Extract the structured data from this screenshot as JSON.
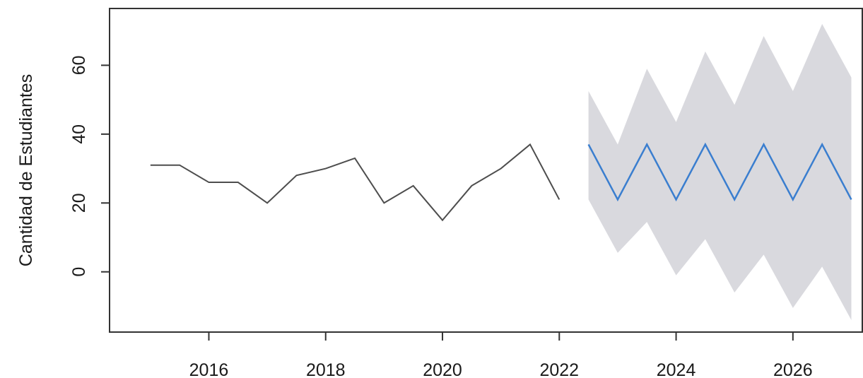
{
  "chart_data": {
    "type": "line",
    "title": "",
    "xlabel": "",
    "ylabel": "Cantidad de Estudiantes",
    "xlim": [
      2014.3,
      2027.2
    ],
    "ylim": [
      -17.5,
      76.5
    ],
    "x_ticks": [
      2016,
      2018,
      2020,
      2022,
      2024,
      2026
    ],
    "y_ticks": [
      0,
      20,
      40,
      60
    ],
    "grid": false,
    "legend": "none",
    "series": [
      {
        "role": "observed",
        "color": "#4d4d4d",
        "x": [
          2015.0,
          2015.5,
          2016.0,
          2016.5,
          2017.0,
          2017.5,
          2018.0,
          2018.5,
          2019.0,
          2019.5,
          2020.0,
          2020.5,
          2021.0,
          2021.5,
          2022.0
        ],
        "y": [
          31,
          31,
          26,
          26,
          20,
          28,
          30,
          33,
          20,
          25,
          15,
          25,
          30,
          37,
          21
        ]
      },
      {
        "role": "forecast",
        "color": "#3a7ecf",
        "x": [
          2022.5,
          2023.0,
          2023.5,
          2024.0,
          2024.5,
          2025.0,
          2025.5,
          2026.0,
          2026.5,
          2027.0
        ],
        "y": [
          37,
          21,
          37,
          21,
          37,
          21,
          37,
          21,
          37,
          21
        ]
      }
    ],
    "interval": {
      "color": "#d9d9de",
      "x": [
        2022.5,
        2023.0,
        2023.5,
        2024.0,
        2024.5,
        2025.0,
        2025.5,
        2026.0,
        2026.5,
        2027.0
      ],
      "upper": [
        52.5,
        37,
        59,
        43.5,
        64,
        48.5,
        68.5,
        52.5,
        72,
        56.5
      ],
      "lower": [
        21,
        5.5,
        14.5,
        -1,
        9.5,
        -6,
        5,
        -10.5,
        1.5,
        -14
      ]
    }
  }
}
